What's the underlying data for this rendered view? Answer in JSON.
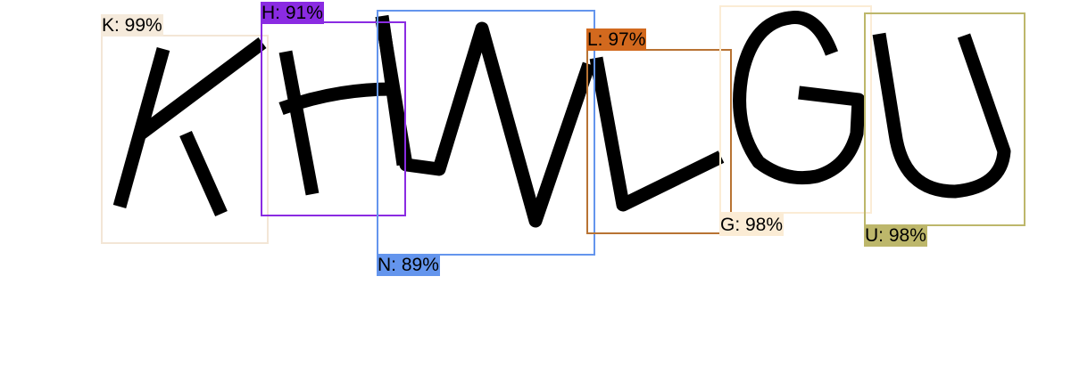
{
  "detections": [
    {
      "letter": "K",
      "label": "K: 99%",
      "confidence": 0.99,
      "color": "#f5eadb"
    },
    {
      "letter": "H",
      "label": "H: 91%",
      "confidence": 0.91,
      "color": "#8a2be2"
    },
    {
      "letter": "N",
      "label": "N: 89%",
      "confidence": 0.89,
      "color": "#6495ed"
    },
    {
      "letter": "L",
      "label": "L: 97%",
      "confidence": 0.97,
      "color": "#d2691e"
    },
    {
      "letter": "G",
      "label": "G: 98%",
      "confidence": 0.98,
      "color": "#fbecd5"
    },
    {
      "letter": "U",
      "label": "U: 98%",
      "confidence": 0.98,
      "color": "#bdb76b"
    }
  ],
  "box_colors": {
    "K": "#f3e6d6",
    "H": "#8a2be2",
    "N": "#6495ed",
    "L": "#b87333",
    "G": "#fbecd5",
    "U": "#bdb76b"
  }
}
